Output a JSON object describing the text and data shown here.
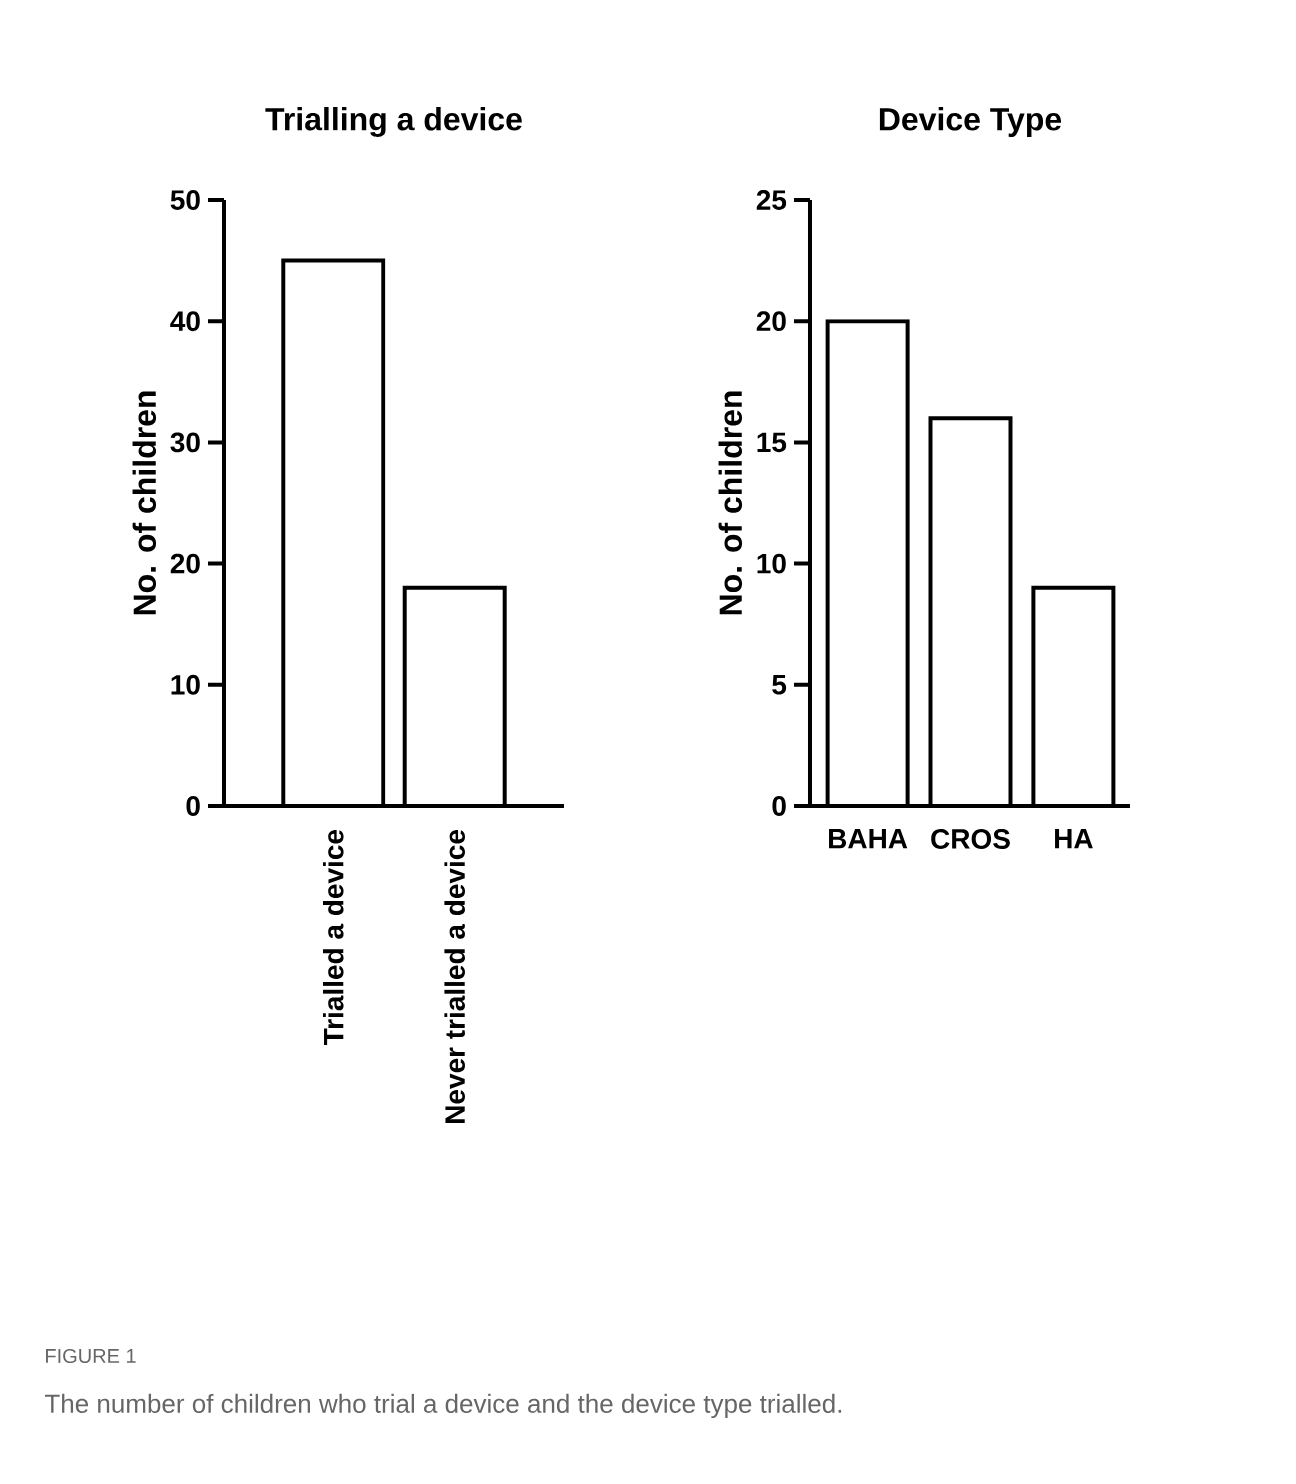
{
  "chart_data": [
    {
      "type": "bar",
      "title": "Trialling a device",
      "ylabel": "No. of children",
      "categories": [
        "Trialled a device",
        "Never trialled a device"
      ],
      "values": [
        45,
        18
      ],
      "color": "#ffffff",
      "ylim": [
        0,
        50
      ],
      "yticks": [
        0,
        10,
        20,
        30,
        40,
        50
      ],
      "grid": false,
      "annotations": [
        "FIGURE 1",
        "The number of children who trial a device and the device type trialled."
      ]
    },
    {
      "type": "bar",
      "title": "Device Type",
      "ylabel": "No. of children",
      "categories": [
        "BAHA",
        "CROS",
        "HA"
      ],
      "values": [
        20,
        16,
        9
      ],
      "color": "#ffffff",
      "ylim": [
        0,
        25
      ],
      "yticks": [
        0,
        5,
        10,
        15,
        20,
        25
      ],
      "grid": false
    }
  ]
}
